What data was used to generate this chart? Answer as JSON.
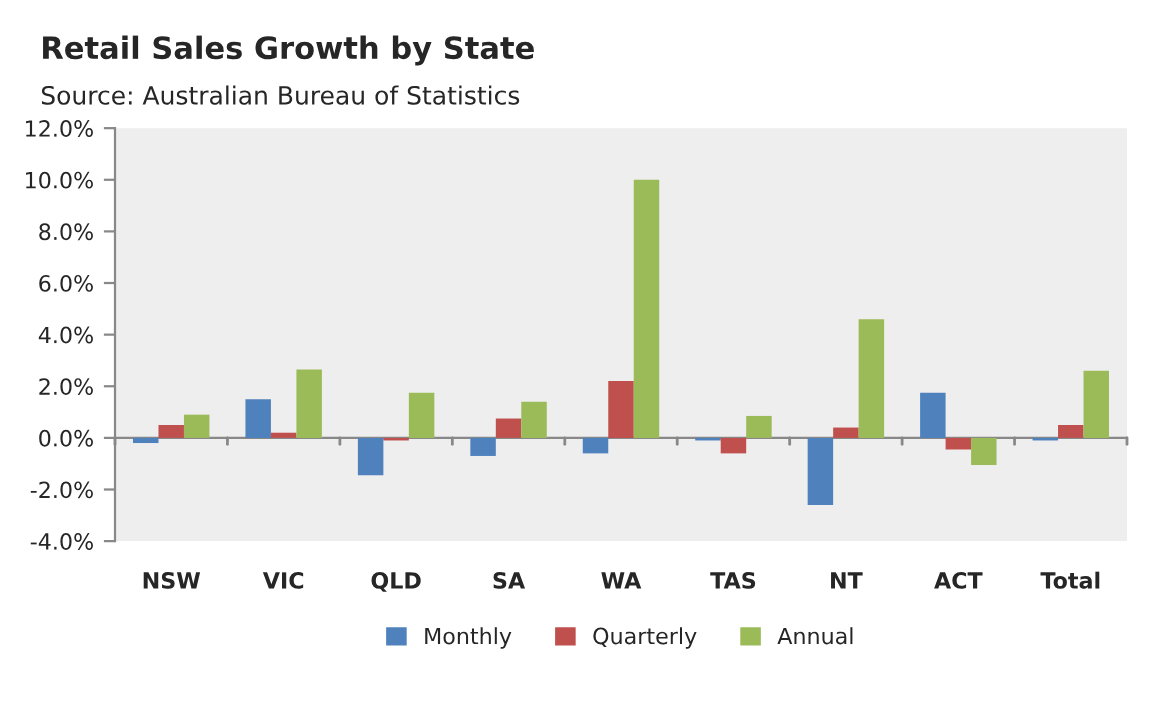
{
  "chart_data": {
    "type": "bar",
    "title": "Retail Sales Growth by State",
    "annotations": [
      "Source: Australian Bureau of Statistics"
    ],
    "categories": [
      "NSW",
      "VIC",
      "QLD",
      "SA",
      "WA",
      "TAS",
      "NT",
      "ACT",
      "Total"
    ],
    "series": [
      {
        "name": "Monthly",
        "color": "#4f81bd",
        "values": [
          -0.2,
          1.5,
          -1.45,
          -0.7,
          -0.6,
          -0.1,
          -2.6,
          1.75,
          -0.1
        ]
      },
      {
        "name": "Quarterly",
        "color": "#c0504d",
        "values": [
          0.5,
          0.2,
          -0.1,
          0.75,
          2.2,
          -0.6,
          0.4,
          -0.45,
          0.5
        ]
      },
      {
        "name": "Annual",
        "color": "#9bbb59",
        "values": [
          0.9,
          2.65,
          1.75,
          1.4,
          10.0,
          0.85,
          4.6,
          -1.05,
          2.6
        ]
      }
    ],
    "ylim": [
      -4,
      12
    ],
    "yticks": [
      {
        "value": -4,
        "label": "-4.0%"
      },
      {
        "value": -2,
        "label": "-2.0%"
      },
      {
        "value": 0,
        "label": "0.0%"
      },
      {
        "value": 2,
        "label": "2.0%"
      },
      {
        "value": 4,
        "label": "4.0%"
      },
      {
        "value": 6,
        "label": "6.0%"
      },
      {
        "value": 8,
        "label": "8.0%"
      },
      {
        "value": 10,
        "label": "10.0%"
      },
      {
        "value": 12,
        "label": "12.0%"
      }
    ],
    "legend": "bottom"
  }
}
